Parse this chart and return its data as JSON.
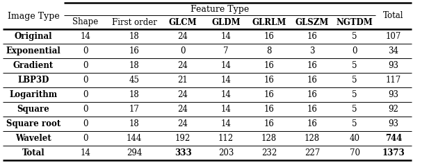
{
  "col_headers": [
    "Shape",
    "First order",
    "GLCM",
    "GLDM",
    "GLRLM",
    "GLSZM",
    "NGTDM"
  ],
  "total_header": "Total",
  "row_headers": [
    "Original",
    "Exponential",
    "Gradient",
    "LBP3D",
    "Logarithm",
    "Square",
    "Square root",
    "Wavelet",
    "Total"
  ],
  "data": [
    [
      "14",
      "18",
      "24",
      "14",
      "16",
      "16",
      "5",
      "107"
    ],
    [
      "0",
      "16",
      "0",
      "7",
      "8",
      "3",
      "0",
      "34"
    ],
    [
      "0",
      "18",
      "24",
      "14",
      "16",
      "16",
      "5",
      "93"
    ],
    [
      "0",
      "45",
      "21",
      "14",
      "16",
      "16",
      "5",
      "117"
    ],
    [
      "0",
      "18",
      "24",
      "14",
      "16",
      "16",
      "5",
      "93"
    ],
    [
      "0",
      "17",
      "24",
      "14",
      "16",
      "16",
      "5",
      "92"
    ],
    [
      "0",
      "18",
      "24",
      "14",
      "16",
      "16",
      "5",
      "93"
    ],
    [
      "0",
      "144",
      "192",
      "112",
      "128",
      "128",
      "40",
      "744"
    ],
    [
      "14",
      "294",
      "333",
      "203",
      "232",
      "227",
      "70",
      "1373"
    ]
  ],
  "image_type_label": "Image Type",
  "feature_type_label": "Feature Type",
  "bold_row_indices": [
    7,
    8
  ],
  "bold_specific_cells": [
    [
      7,
      7
    ],
    [
      8,
      2
    ],
    [
      8,
      7
    ]
  ],
  "figsize": [
    6.4,
    2.35
  ],
  "dpi": 100
}
